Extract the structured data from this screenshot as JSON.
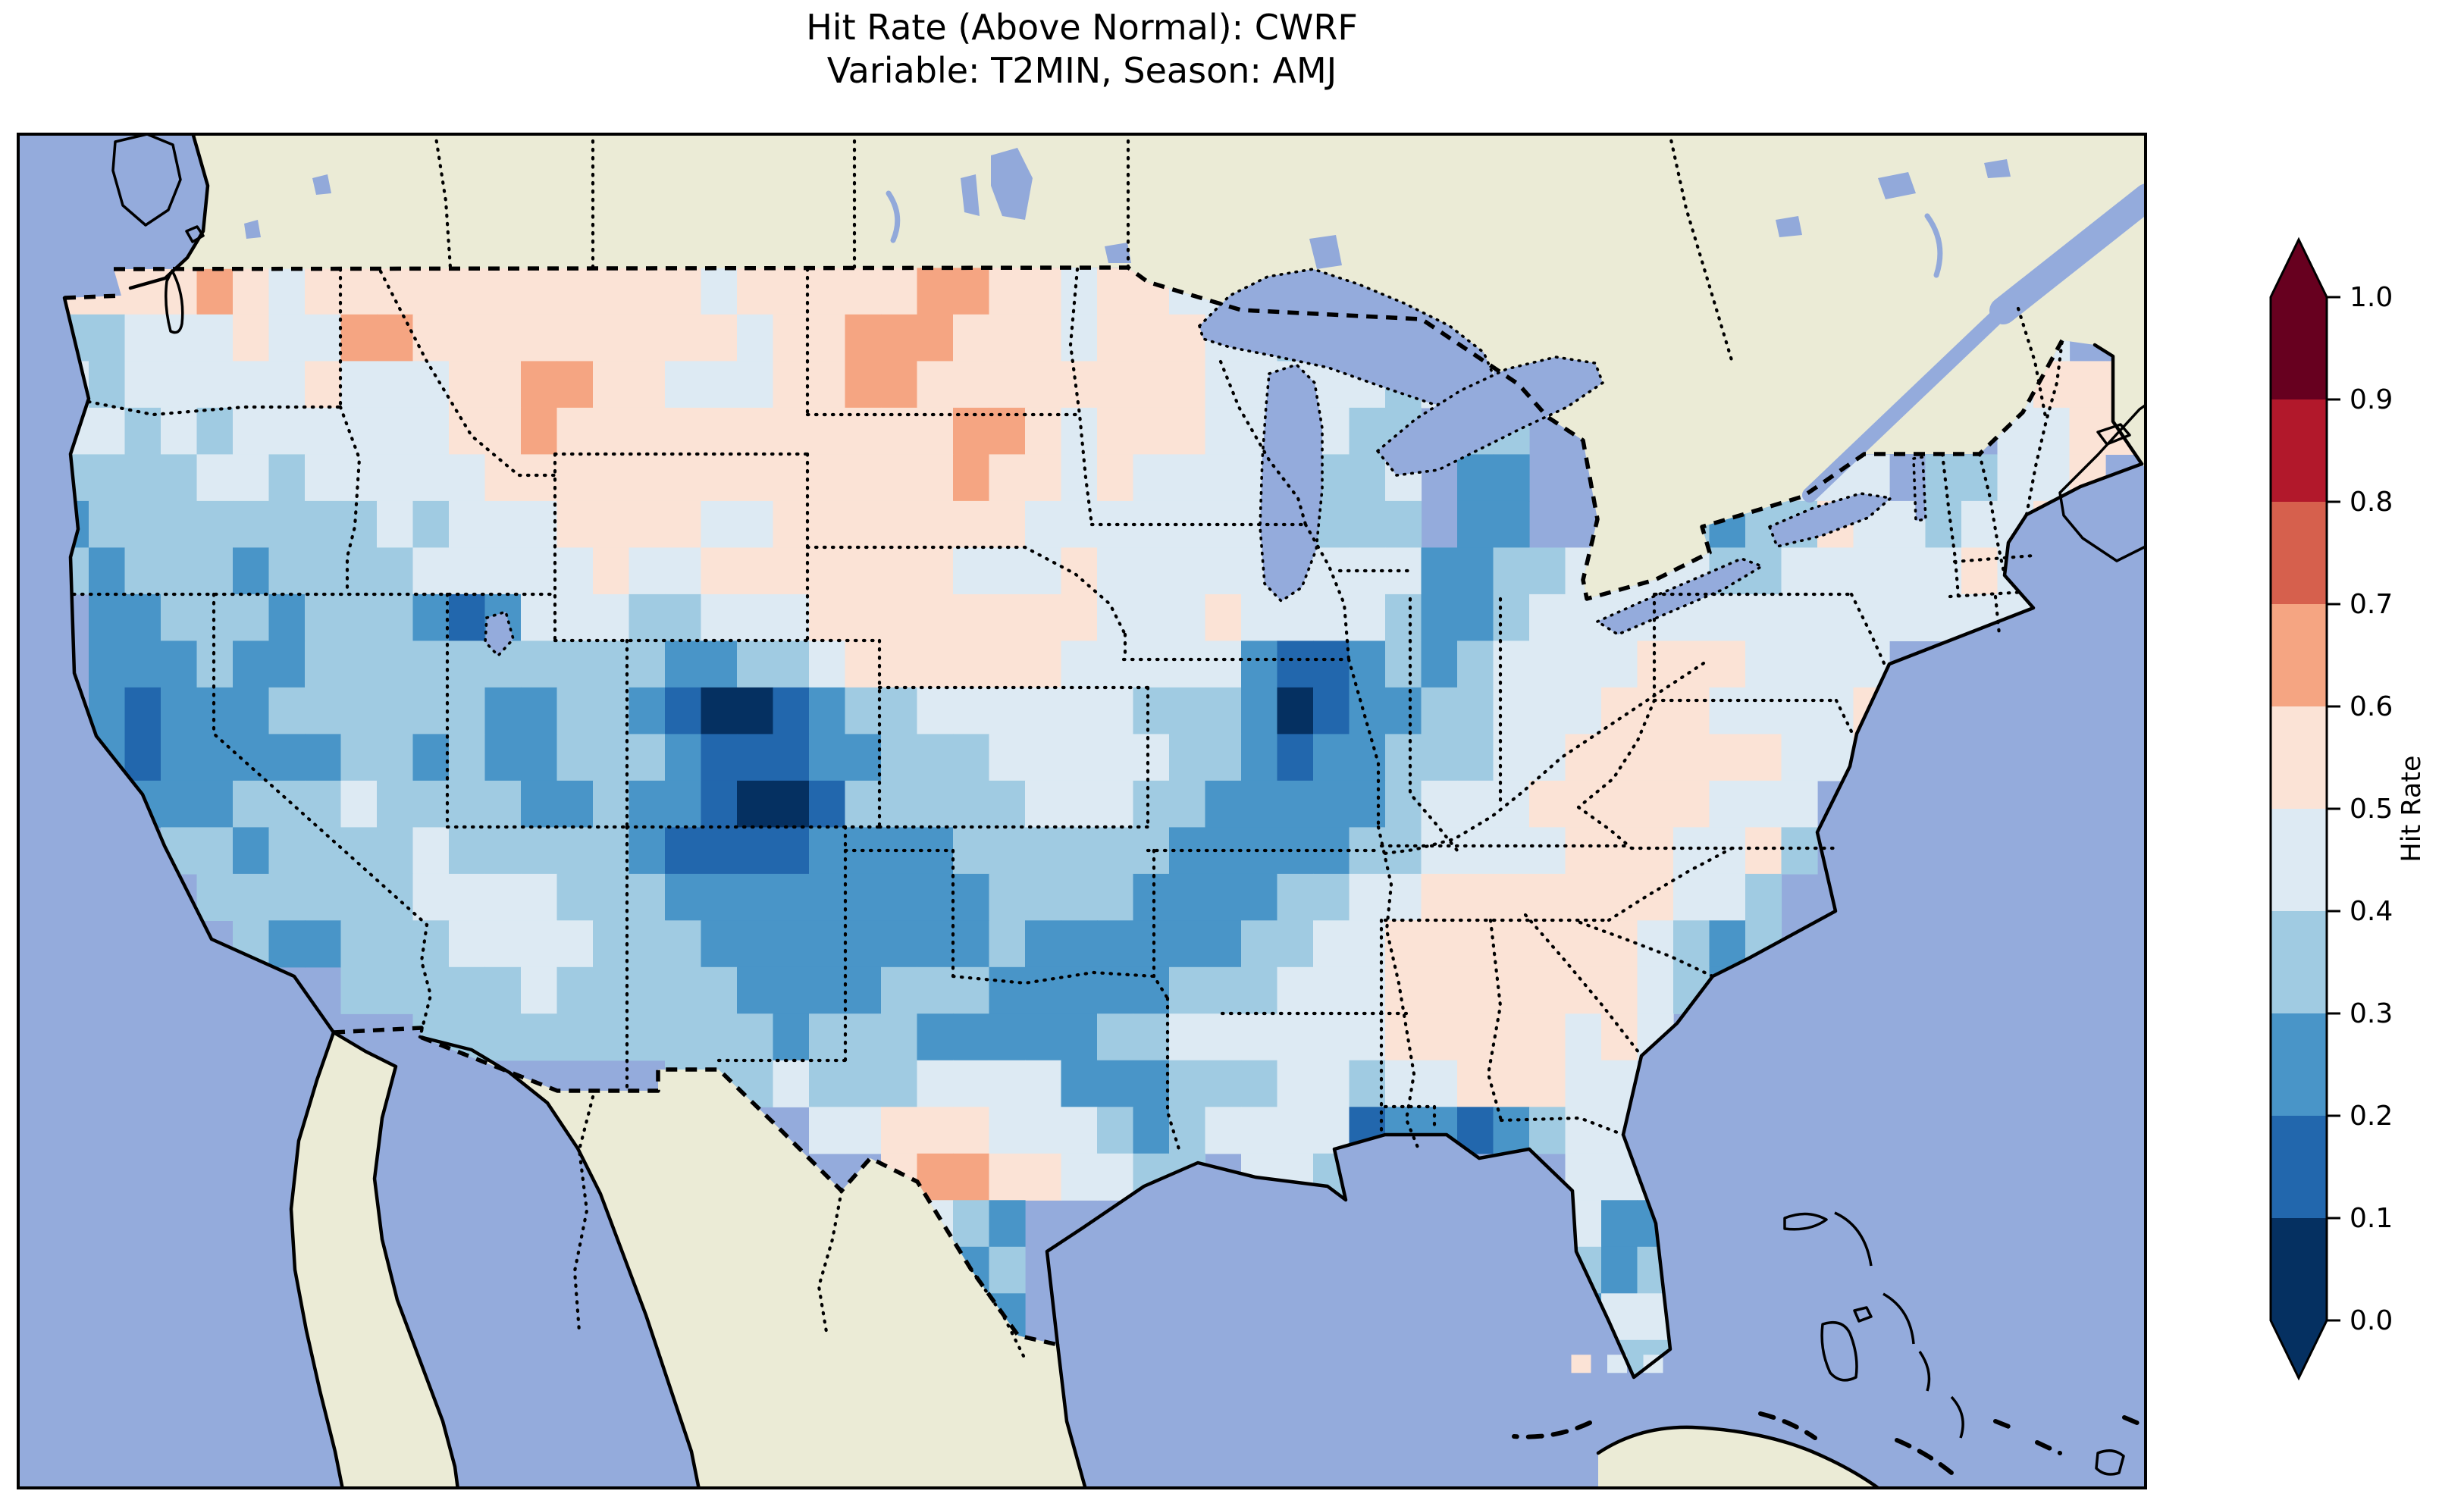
{
  "title": {
    "line1": "Hit Rate (Above Normal): CWRF",
    "line2": "Variable: T2MIN, Season: AMJ"
  },
  "colorbar": {
    "label": "Hit Rate",
    "ticks": [
      "1.0",
      "0.9",
      "0.8",
      "0.7",
      "0.6",
      "0.5",
      "0.4",
      "0.3",
      "0.2",
      "0.1",
      "0.0"
    ],
    "segments_top_to_bottom": [
      "#67001f",
      "#b2182b",
      "#d6604d",
      "#f5a582",
      "#fbe3d6",
      "#ddeaf3",
      "#a0cbe2",
      "#4995c8",
      "#2267ad",
      "#053061"
    ],
    "over_arrow_color": "#67001f",
    "under_arrow_color": "#053061"
  },
  "map": {
    "ocean_color": "#94abdc",
    "lake_small_color": "#92a9da",
    "land_color": "#ebebd6",
    "frame_color": "#000000",
    "bin_colors": [
      "#053061",
      "#2267ad",
      "#4995c8",
      "#a0cbe2",
      "#ddeaf3",
      "#fbe3d6",
      "#f5a582",
      "#d6604d",
      "#b2182b",
      "#67001f"
    ]
  },
  "chart_data": {
    "type": "heatmap",
    "title": "Hit Rate (Above Normal): CWRF",
    "subtitle": "Variable: T2MIN, Season: AMJ",
    "metric": "Hit Rate (Above Normal)",
    "model": "CWRF",
    "variable": "T2MIN",
    "season": "AMJ",
    "colorbar_label": "Hit Rate",
    "colorbar_ticks": [
      1.0,
      0.9,
      0.8,
      0.7,
      0.6,
      0.5,
      0.4,
      0.3,
      0.2,
      0.1,
      0.0
    ],
    "value_range": [
      0.0,
      1.0
    ],
    "bin_width": 0.1,
    "legend_position": "right",
    "region": "Continental United States; southern Canada, northern Mexico, Bahamas and Cuba visible without data",
    "grid": {
      "lon_west": -125,
      "lon_east": -67,
      "lat_north": 50,
      "lat_south": 24,
      "cell_size_deg": 1,
      "encoding": "each char is one 1-deg cell, west to east; digit d means hit-rate bin [d/10,(d+1)/10); '.' = no data",
      "rows_north_to_south": [
        "..........................................................",
        "555565455555555555455555665545544444......................",
        "334445446655555555545566655545554434444...............44..",
        "4344444544455665544455665555555544444344..............4555",
        "44343444444556555555555556654555444433.33.............4455",
        "33334434444455555555555556554544444334.22......4444.33445.",
        "23333333343444555544555555544444443333.22...432335443445..",
        "3233323333444445445555555444544444444422334444334444454...",
        ".223332333212444334445555555544454444322344444444444444...",
        ".22232233333333332233455555544444211232344445554444.......",
        ".21222333333223321001233444444333201223344455544445.......",
        ".21222223323223332111223334444433212233344555555445.......",
        "..22233343333223221001333334443322222344455555444.........",
        "...3323333433333211112222333333222223344445554453.........",
        "....33333344443332222222223333222233445555555443..........",
        ".....3223334444333222222223222222334455555554323..........",
        "........333334333332222333222223334445555555432...........",
        "..........33333333332333222223344444455555454.............",
        ".................333433344442223334434455544..............",
        ".....................44555444323444412212344..............",
        ".......................566554433.443......444.............",
        "........................432...............422.............",
        ".........................23...............323.............",
        "..........................2..............2244.............",
        "..........................................433.............",
        ".........................................................."
      ]
    },
    "offshore_cells_south_of_florida": [
      {
        "row": 25,
        "col": 42,
        "bin": 5
      },
      {
        "row": 25,
        "col": 43,
        "bin": 4
      },
      {
        "row": 25,
        "col": 44,
        "bin": 4
      }
    ]
  }
}
